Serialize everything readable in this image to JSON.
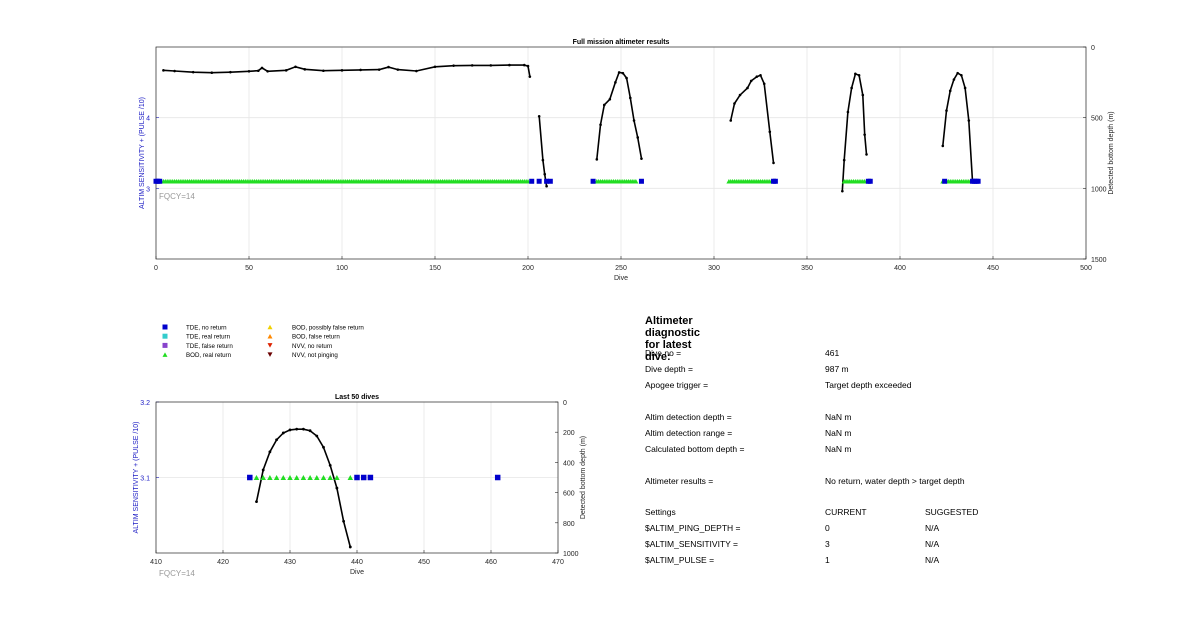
{
  "chart_data": [
    {
      "id": "full",
      "type": "scatter",
      "title": "Full mission altimeter results",
      "xlabel": "Dive",
      "ylabel": "ALTIM SENSITIVITY + (PULSE /10)",
      "y2label": "Detected bottom depth (m)",
      "xlim": [
        0,
        500
      ],
      "ylim": [
        2.0,
        5.0
      ],
      "y2lim": [
        1500,
        0
      ],
      "xticks": [
        "0",
        "50",
        "100",
        "150",
        "200",
        "250",
        "300",
        "350",
        "400",
        "450",
        "500"
      ],
      "yticks": [
        "3",
        "4"
      ],
      "y2ticks": [
        "0",
        "500",
        "1000",
        "1500"
      ],
      "grid": true,
      "annotation": "FQCY=14",
      "series": [
        {
          "kind": "depth_line",
          "color": "#000000",
          "x": [
            4,
            10,
            20,
            30,
            40,
            50,
            55,
            57,
            60,
            70,
            75,
            80,
            90,
            100,
            110,
            120,
            125,
            130,
            140,
            150,
            160,
            170,
            180,
            190,
            198,
            200,
            201
          ],
          "y": [
            165,
            170,
            178,
            182,
            178,
            172,
            168,
            148,
            172,
            165,
            140,
            158,
            168,
            165,
            162,
            160,
            142,
            160,
            170,
            140,
            132,
            130,
            130,
            128,
            128,
            135,
            210
          ]
        },
        {
          "kind": "depth_line",
          "color": "#000000",
          "x": [
            206,
            208,
            209,
            210
          ],
          "y": [
            490,
            800,
            900,
            985
          ]
        },
        {
          "kind": "depth_line",
          "color": "#000000",
          "x": [
            237,
            239,
            241,
            244,
            247,
            249,
            251,
            253,
            255,
            257,
            259,
            261
          ],
          "y": [
            795,
            550,
            410,
            370,
            250,
            180,
            185,
            220,
            360,
            520,
            640,
            790
          ]
        },
        {
          "kind": "depth_line",
          "color": "#000000",
          "x": [
            309,
            311,
            314,
            318,
            320,
            323,
            325,
            327,
            330,
            332
          ],
          "y": [
            520,
            400,
            340,
            290,
            240,
            210,
            200,
            260,
            600,
            820
          ]
        },
        {
          "kind": "depth_line",
          "color": "#000000",
          "x": [
            369,
            370,
            372,
            374,
            376,
            378,
            380,
            381,
            382
          ],
          "y": [
            1020,
            800,
            460,
            290,
            190,
            200,
            340,
            620,
            760
          ]
        },
        {
          "kind": "depth_line",
          "color": "#000000",
          "x": [
            423,
            425,
            427,
            429,
            431,
            433,
            435,
            437,
            439
          ],
          "y": [
            700,
            450,
            310,
            230,
            185,
            200,
            290,
            520,
            950
          ]
        },
        {
          "kind": "marker_run",
          "marker": "triangle",
          "color": "#22dd22",
          "label": "BOD, real return",
          "y": 3.1,
          "ranges": [
            [
              4,
              200
            ],
            [
              237,
              258
            ],
            [
              308,
              330
            ],
            [
              370,
              381
            ],
            [
              423,
              438
            ]
          ],
          "step": 1
        },
        {
          "kind": "markers",
          "marker": "square",
          "color": "#0000cc",
          "label": "TDE, no return",
          "y": 3.1,
          "x": [
            0,
            1,
            2,
            202,
            206,
            210,
            212,
            235,
            261,
            332,
            333,
            383,
            384,
            424,
            439,
            440,
            441,
            442
          ]
        }
      ]
    },
    {
      "id": "last50",
      "type": "scatter",
      "title": "Last 50 dives",
      "xlabel": "Dive",
      "ylabel": "ALTIM SENSITIVITY + (PULSE /10)",
      "y2label": "Detected bottom depth (m)",
      "xlim": [
        410,
        470
      ],
      "ylim": [
        3.0,
        3.2
      ],
      "y2lim": [
        1000,
        0
      ],
      "xticks": [
        "410",
        "420",
        "430",
        "440",
        "450",
        "460",
        "470"
      ],
      "yticks": [
        "3.1",
        "3.2"
      ],
      "y2ticks": [
        "0",
        "200",
        "400",
        "600",
        "800",
        "1000"
      ],
      "grid": true,
      "annotation": "FQCY=14",
      "series": [
        {
          "kind": "depth_line",
          "color": "#000000",
          "x": [
            425,
            426,
            427,
            428,
            429,
            430,
            431,
            432,
            433,
            434,
            435,
            436,
            437,
            438,
            439
          ],
          "y": [
            660,
            450,
            330,
            250,
            205,
            185,
            180,
            180,
            190,
            225,
            300,
            420,
            570,
            790,
            960
          ]
        },
        {
          "kind": "markers",
          "marker": "triangle",
          "color": "#22dd22",
          "label": "BOD, real return",
          "y": 3.1,
          "x": [
            425,
            426,
            427,
            428,
            429,
            430,
            431,
            432,
            433,
            434,
            435,
            436,
            437,
            439
          ]
        },
        {
          "kind": "markers",
          "marker": "square",
          "color": "#0000cc",
          "label": "TDE, no return",
          "y": 3.1,
          "x": [
            424,
            440,
            441,
            442,
            461
          ]
        }
      ]
    }
  ],
  "legend": {
    "left": [
      {
        "label": "TDE, no return",
        "marker": "square",
        "color": "#0000cc"
      },
      {
        "label": "TDE, real return",
        "marker": "square",
        "color": "#33cccc"
      },
      {
        "label": "TDE, false return",
        "marker": "square",
        "color": "#8844cc"
      },
      {
        "label": "BOD, real return",
        "marker": "triangle",
        "color": "#22dd22"
      }
    ],
    "right": [
      {
        "label": "BOD, possibly false return",
        "marker": "triangle",
        "color": "#f0d000"
      },
      {
        "label": "BOD, false return",
        "marker": "triangle",
        "color": "#ff8800"
      },
      {
        "label": "NVV, no return",
        "marker": "triangle-down",
        "color": "#dd2200"
      },
      {
        "label": "NVV, not pinging",
        "marker": "triangle-down",
        "color": "#6b0000"
      }
    ]
  },
  "diagnostic": {
    "title": "Altimeter diagnostic for latest dive:",
    "rows": [
      {
        "label": "Dive no =",
        "value": "461"
      },
      {
        "label": "Dive depth =",
        "value": "987 m"
      },
      {
        "label": "Apogee trigger =",
        "value": "Target depth exceeded"
      },
      {
        "label": "Altim detection depth =",
        "value": "NaN m"
      },
      {
        "label": "Altim detection range =",
        "value": "NaN m"
      },
      {
        "label": "Calculated bottom depth =",
        "value": "NaN m"
      },
      {
        "label": "Altimeter results =",
        "value": "No return, water depth > target depth"
      }
    ],
    "settings_header": {
      "label": "Settings",
      "current": "CURRENT",
      "suggested": "SUGGESTED"
    },
    "settings": [
      {
        "label": "$ALTIM_PING_DEPTH =",
        "current": "0",
        "suggested": "N/A"
      },
      {
        "label": "$ALTIM_SENSITIVITY =",
        "current": "3",
        "suggested": "N/A"
      },
      {
        "label": "$ALTIM_PULSE =",
        "current": "1",
        "suggested": "N/A"
      }
    ]
  }
}
